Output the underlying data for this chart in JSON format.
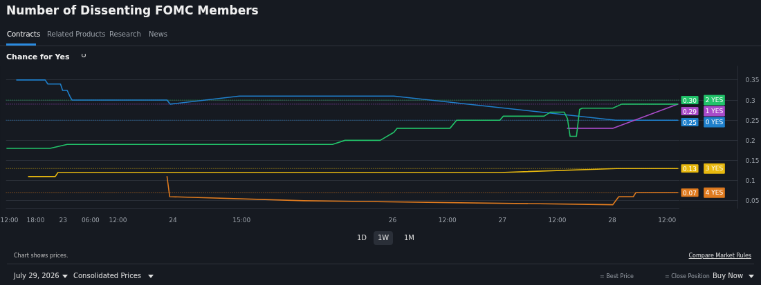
{
  "chart_data": {
    "type": "line",
    "title": "Number of Dissenting FOMC Members",
    "subtitle": "Chance for Yes",
    "annotations": [
      "Contracts",
      "Related Products",
      "Research",
      "News",
      "1D",
      "1W",
      "1M",
      "Chart shows prices.",
      "Compare Market Rules",
      "July 29, 2026",
      "Consolidated Prices",
      "= Best Price",
      "= Close Position",
      "Buy Now"
    ],
    "xlim": [
      "2026-07-22T11:30",
      "2026-07-28T14:45"
    ],
    "ylim": [
      0.03,
      0.385
    ],
    "xticks": [
      {
        "value": "2026-07-22T12:00",
        "label": "12:00"
      },
      {
        "value": "2026-07-22T18:00",
        "label": "18:00"
      },
      {
        "value": "2026-07-23T00:00",
        "label": "23"
      },
      {
        "value": "2026-07-23T06:00",
        "label": "06:00"
      },
      {
        "value": "2026-07-23T12:00",
        "label": "12:00"
      },
      {
        "value": "2026-07-24T00:00",
        "label": "24"
      },
      {
        "value": "2026-07-24T15:00",
        "label": "15:00"
      },
      {
        "value": "2026-07-26T00:00",
        "label": "26"
      },
      {
        "value": "2026-07-26T12:00",
        "label": "12:00"
      },
      {
        "value": "2026-07-27T00:00",
        "label": "27"
      },
      {
        "value": "2026-07-27T12:00",
        "label": "12:00"
      },
      {
        "value": "2026-07-28T00:00",
        "label": "28"
      },
      {
        "value": "2026-07-28T12:00",
        "label": "12:00"
      }
    ],
    "yticks": [
      0.05,
      0.1,
      0.15,
      0.2,
      0.25,
      0.3,
      0.35
    ],
    "grid": "y",
    "legend": "right",
    "series": [
      {
        "name": "0 YES",
        "color": "#1f80cc",
        "x": [
          "2026-07-22T13:51",
          "2026-07-22T20:05",
          "2026-07-22T20:40",
          "2026-07-22T23:26",
          "2026-07-22T23:54",
          "2026-07-23T00:54",
          "2026-07-23T01:31",
          "2026-07-23T01:58",
          "2026-07-23T22:43",
          "2026-07-23T23:25",
          "2026-07-24T14:31",
          "2026-07-25T21:18",
          "2026-07-26T00:17",
          "2026-07-28T00:46",
          "2026-07-28T14:18"
        ],
        "values": [
          0.35,
          0.35,
          0.34,
          0.34,
          0.324,
          0.324,
          0.309,
          0.3,
          0.3,
          0.29,
          0.31,
          0.31,
          0.31,
          0.25,
          0.25
        ]
      },
      {
        "name": "1 YES",
        "color": "#a94bc9",
        "x": [
          "2026-07-27T14:13",
          "2026-07-28T00:07",
          "2026-07-28T14:18"
        ],
        "values": [
          0.23,
          0.23,
          0.29
        ]
      },
      {
        "name": "2 YES",
        "color": "#22c36a",
        "x": [
          "2026-07-22T11:43",
          "2026-07-22T21:08",
          "2026-07-23T00:54",
          "2026-07-25T10:53",
          "2026-07-25T13:36",
          "2026-07-25T21:18",
          "2026-07-26T00:17",
          "2026-07-26T00:59",
          "2026-07-26T12:33",
          "2026-07-26T14:00",
          "2026-07-26T23:26",
          "2026-07-27T00:12",
          "2026-07-27T09:06",
          "2026-07-27T10:27",
          "2026-07-27T13:31",
          "2026-07-27T14:13",
          "2026-07-27T14:48",
          "2026-07-27T16:11",
          "2026-07-27T16:53",
          "2026-07-27T17:29",
          "2026-07-28T00:07",
          "2026-07-28T02:05",
          "2026-07-28T14:18"
        ],
        "values": [
          0.18,
          0.18,
          0.19,
          0.19,
          0.2,
          0.2,
          0.22,
          0.23,
          0.23,
          0.25,
          0.25,
          0.26,
          0.26,
          0.27,
          0.27,
          0.254,
          0.21,
          0.21,
          0.277,
          0.28,
          0.28,
          0.29,
          0.29
        ]
      },
      {
        "name": "3 YES",
        "color": "#e8b90f",
        "x": [
          "2026-07-22T16:26",
          "2026-07-22T22:17",
          "2026-07-22T22:52",
          "2026-07-26T23:26",
          "2026-07-28T00:59",
          "2026-07-28T14:18"
        ],
        "values": [
          0.11,
          0.11,
          0.12,
          0.12,
          0.13,
          0.13
        ]
      },
      {
        "name": "4 YES",
        "color": "#e07b1f",
        "x": [
          "2026-07-23T22:43",
          "2026-07-23T23:18",
          "2026-07-25T04:34",
          "2026-07-28T00:07",
          "2026-07-28T01:26",
          "2026-07-28T04:37",
          "2026-07-28T05:10",
          "2026-07-28T14:18"
        ],
        "values": [
          0.11,
          0.06,
          0.05,
          0.04,
          0.06,
          0.06,
          0.07,
          0.07
        ]
      }
    ],
    "ref_lines": [
      {
        "axis": "y",
        "value": 0.25,
        "label": "0.25",
        "color": "#1f80cc",
        "line_style": "dotted"
      },
      {
        "axis": "y",
        "value": 0.29,
        "label": "0.29",
        "color": "#a94bc9",
        "line_style": "dotted"
      },
      {
        "axis": "y",
        "value": 0.3,
        "label": "0.30",
        "color": "#22c36a",
        "line_style": "dotted"
      },
      {
        "axis": "y",
        "value": 0.13,
        "label": "0.13",
        "color": "#e8b90f",
        "line_style": "dotted"
      },
      {
        "axis": "y",
        "value": 0.07,
        "label": "0.07",
        "color": "#e07b1f",
        "line_style": "dotted"
      }
    ]
  }
}
